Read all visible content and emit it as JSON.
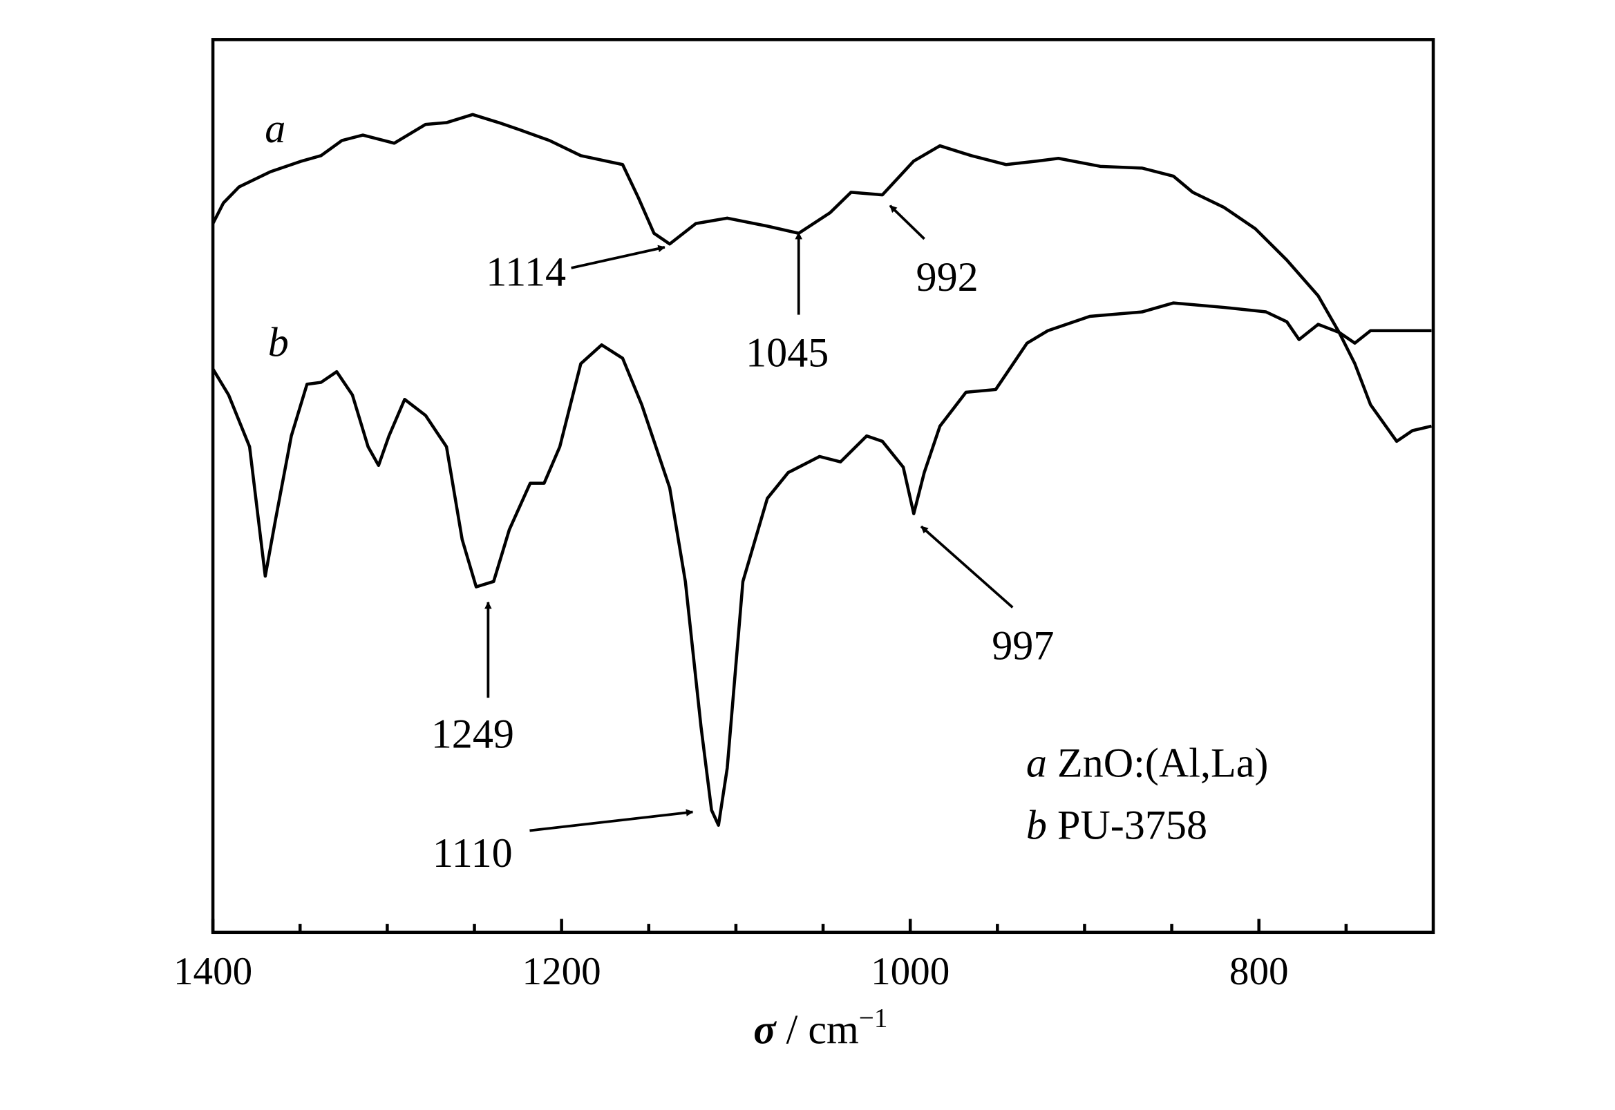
{
  "chart_data": {
    "type": "line",
    "x_label": {
      "symbol": "σ",
      "unit": "/ cm",
      "exponent": "−1"
    },
    "xlim": [
      1400,
      700
    ],
    "ylim": [
      0,
      100
    ],
    "xticks": [
      1400,
      1200,
      1000,
      800
    ],
    "xticks_minor": [
      1350,
      1300,
      1250,
      1150,
      1100,
      1050,
      950,
      900,
      850,
      750
    ],
    "series": [
      {
        "label": "a",
        "name": "ZnO:(Al,La)",
        "color": "#000000",
        "x": [
          1400,
          1394,
          1385,
          1367,
          1349,
          1338,
          1326,
          1314,
          1296,
          1278,
          1266,
          1251,
          1236,
          1224,
          1207,
          1189,
          1165,
          1156,
          1147,
          1138,
          1123,
          1105,
          1082,
          1064,
          1046,
          1034,
          1016,
          998,
          983,
          965,
          945,
          927,
          915,
          891,
          867,
          849,
          838,
          820,
          802,
          784,
          766,
          754,
          745,
          736,
          721,
          712,
          701
        ],
        "values": [
          79.4,
          81.7,
          83.5,
          85.2,
          86.4,
          87.0,
          88.7,
          89.3,
          88.4,
          90.5,
          90.7,
          91.6,
          90.7,
          89.9,
          88.7,
          87.0,
          86.0,
          82.3,
          78.3,
          77.1,
          79.4,
          80.0,
          79.1,
          78.3,
          80.6,
          82.9,
          82.6,
          86.4,
          88.1,
          87.0,
          86.0,
          86.4,
          86.7,
          85.8,
          85.6,
          84.7,
          82.9,
          81.2,
          78.8,
          75.3,
          71.3,
          67.2,
          63.7,
          59.1,
          55.0,
          56.2,
          56.7
        ]
      },
      {
        "label": "b",
        "name": "PU-3758",
        "color": "#000000",
        "x": [
          1400,
          1391,
          1379,
          1370,
          1364,
          1355,
          1346,
          1338,
          1329,
          1320,
          1311,
          1305,
          1299,
          1290,
          1278,
          1266,
          1257,
          1249,
          1239,
          1230,
          1218,
          1210,
          1201,
          1189,
          1177,
          1165,
          1154,
          1138,
          1129,
          1120,
          1114,
          1110,
          1105,
          1096,
          1082,
          1070,
          1052,
          1040,
          1025,
          1016,
          1004,
          998,
          992,
          983,
          968,
          951,
          933,
          921,
          897,
          867,
          849,
          820,
          796,
          784,
          777,
          766,
          754,
          745,
          736,
          701
        ],
        "values": [
          63.1,
          60.2,
          54.4,
          39.9,
          46.3,
          55.6,
          61.4,
          61.6,
          62.8,
          60.2,
          54.4,
          52.3,
          55.6,
          59.7,
          57.9,
          54.4,
          44.0,
          38.7,
          39.3,
          45.1,
          50.3,
          50.3,
          54.4,
          63.7,
          65.8,
          64.3,
          59.1,
          49.8,
          39.3,
          23.0,
          13.7,
          12.0,
          18.4,
          39.3,
          48.6,
          51.5,
          53.3,
          52.7,
          55.6,
          55.0,
          52.1,
          46.9,
          51.5,
          56.7,
          60.5,
          60.8,
          66.0,
          67.4,
          69.0,
          69.5,
          70.5,
          70.0,
          69.5,
          68.4,
          66.4,
          68.1,
          67.2,
          66.0,
          67.4,
          67.4
        ]
      }
    ],
    "annotations": [
      "1114",
      "1045",
      "992",
      "1249",
      "1110",
      "997"
    ]
  }
}
